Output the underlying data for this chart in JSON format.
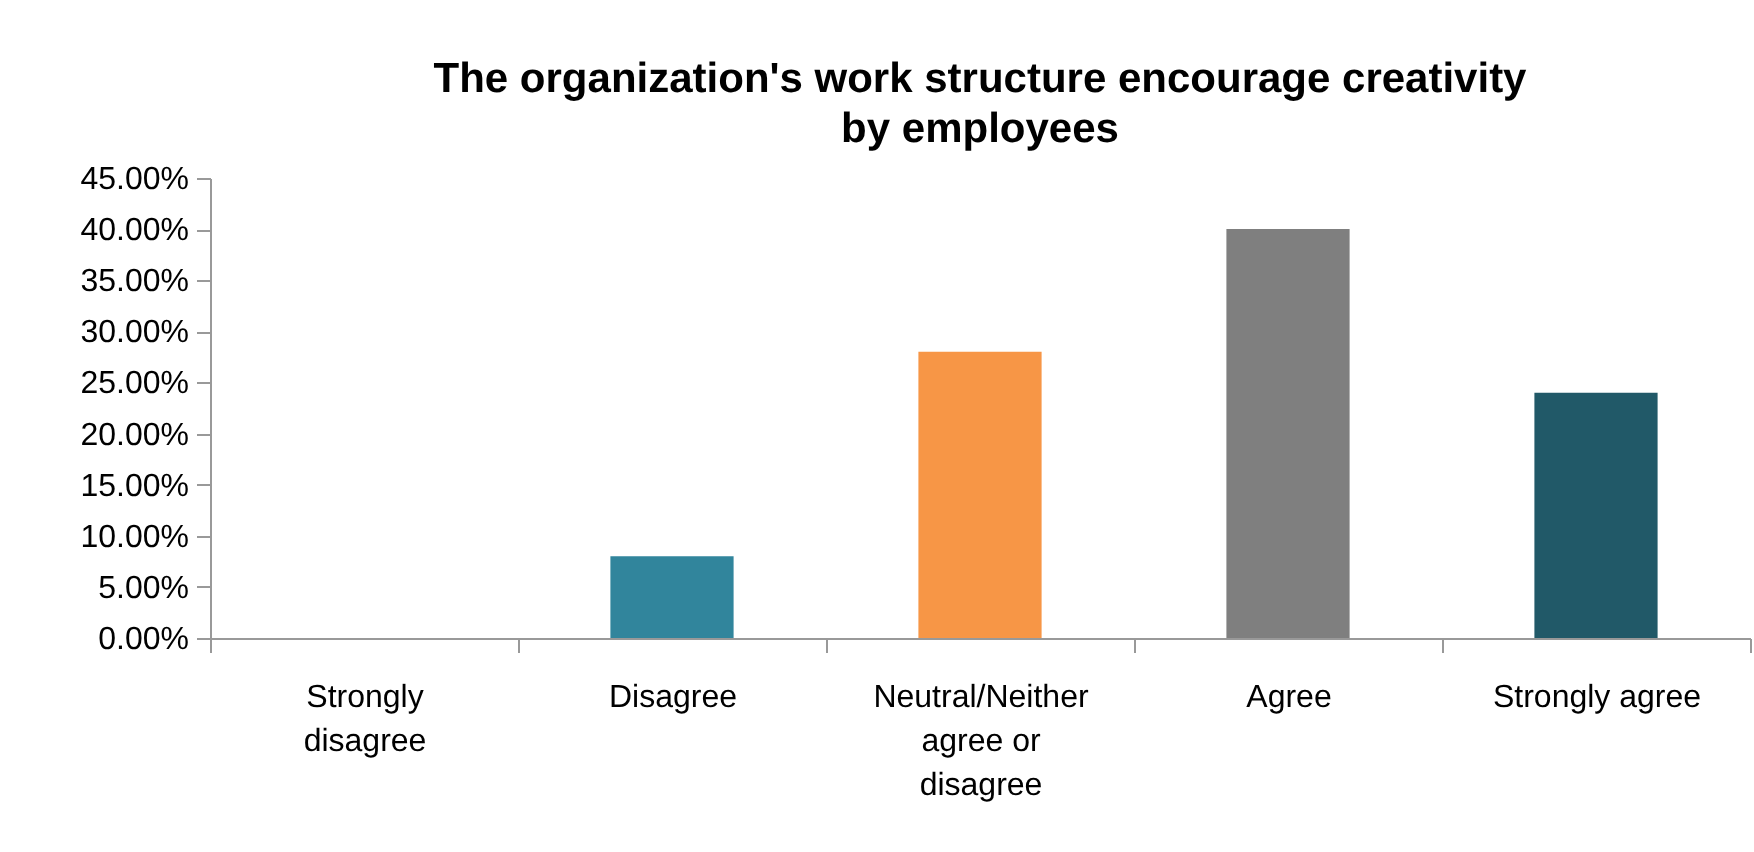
{
  "chart_data": {
    "type": "bar",
    "title": "The organization's work structure encourage creativity by employees",
    "categories": [
      "Strongly disagree",
      "Disagree",
      "Neutral/Neither agree or disagree",
      "Agree",
      "Strongly agree"
    ],
    "values": [
      0,
      8,
      28,
      40,
      24
    ],
    "colors": [
      "#31859c",
      "#31859c",
      "#f79646",
      "#7f7f7f",
      "#215968"
    ],
    "ylim": [
      0,
      45
    ],
    "yticks": [
      {
        "value": 0,
        "label": "0.00%"
      },
      {
        "value": 5,
        "label": "5.00%"
      },
      {
        "value": 10,
        "label": "10.00%"
      },
      {
        "value": 15,
        "label": "15.00%"
      },
      {
        "value": 20,
        "label": "20.00%"
      },
      {
        "value": 25,
        "label": "25.00%"
      },
      {
        "value": 30,
        "label": "30.00%"
      },
      {
        "value": 35,
        "label": "35.00%"
      },
      {
        "value": 40,
        "label": "40.00%"
      },
      {
        "value": 45,
        "label": "45.00%"
      }
    ],
    "grid": false
  }
}
